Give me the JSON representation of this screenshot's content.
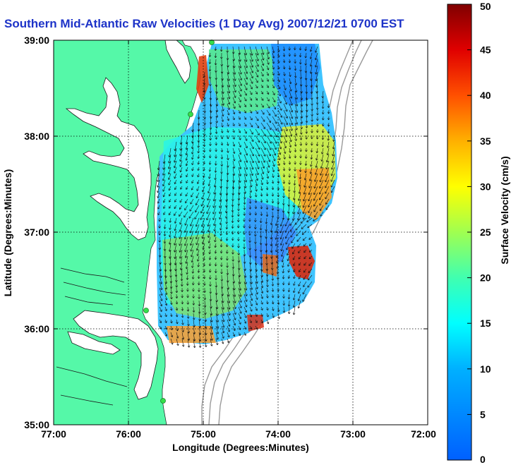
{
  "title": "Southern Mid-Atlantic Raw Velocities (1 Day Avg) 2007/12/21 0700 EST",
  "xlabel": "Longitude (Degrees:Minutes)",
  "ylabel": "Latitude (Degrees:Minutes)",
  "colorbar_label": "Surface Velocity (cm/s)",
  "x_ticks": [
    "77:00",
    "76:00",
    "75:00",
    "74:00",
    "73:00",
    "72:00"
  ],
  "y_ticks": [
    "39:00",
    "38:00",
    "37:00",
    "36:00",
    "35:00"
  ],
  "colorbar_ticks": [
    "0",
    "5",
    "10",
    "15",
    "20",
    "25",
    "30",
    "35",
    "40",
    "45",
    "50"
  ],
  "map": {
    "lon_range": [
      -77,
      -72
    ],
    "lat_range": [
      35,
      39
    ],
    "grid": true,
    "colors": {
      "land": "#55f8a8",
      "water": "#ffffff",
      "bathymetry": "#9a9a9a",
      "station": "#35e04a"
    },
    "stations": [
      {
        "lon": -74.85,
        "lat": 39.0
      },
      {
        "lon": -75.15,
        "lat": 38.23
      },
      {
        "lon": -75.75,
        "lat": 36.18
      },
      {
        "lon": -75.5,
        "lat": 35.25
      }
    ]
  },
  "colorbar": {
    "min": 0,
    "max": 50,
    "colormap": "jet"
  }
}
